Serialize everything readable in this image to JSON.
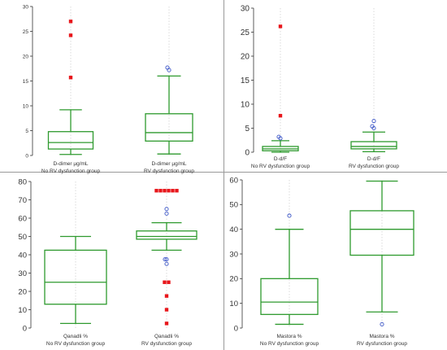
{
  "colors": {
    "box": "#2e9a2e",
    "far_outlier": "#e8161b",
    "near_outlier": "#3b55c7",
    "grid": "#d0d0d0",
    "axis": "#333333",
    "separator": "#9a9a9a"
  },
  "chart_data": [
    {
      "type": "boxplot",
      "ylim": [
        0,
        30
      ],
      "yticks": [
        0,
        5,
        10,
        15,
        20,
        25,
        30
      ],
      "grid": true,
      "groups": [
        {
          "label_line1": "D-dimer µg/mL",
          "label_line2": "No RV dysfunction group",
          "whisker_low": 0.2,
          "q1": 1.3,
          "median": 2.6,
          "q3": 4.8,
          "whisker_high": 9.2,
          "far_outliers": [
            15.7,
            24.2,
            27.0
          ],
          "near_outliers": []
        },
        {
          "label_line1": "D-dimer µg/mL",
          "label_line2": "RV dysfunction group",
          "whisker_low": 0.3,
          "q1": 2.9,
          "median": 4.6,
          "q3": 8.4,
          "whisker_high": 16.0,
          "far_outliers": [],
          "near_outliers": [
            17.2,
            17.7
          ]
        }
      ]
    },
    {
      "type": "boxplot",
      "ylim": [
        0,
        30
      ],
      "yticks": [
        0,
        5,
        10,
        15,
        20,
        25,
        30
      ],
      "grid": true,
      "groups": [
        {
          "label_line1": "D-d/F",
          "label_line2": "No RV dysfunction group",
          "whisker_low": 0.0,
          "q1": 0.3,
          "median": 0.7,
          "q3": 1.2,
          "whisker_high": 2.4,
          "far_outliers": [
            7.6,
            26.2
          ],
          "near_outliers": [
            2.9,
            3.2
          ]
        },
        {
          "label_line1": "D-d/F",
          "label_line2": "RV dysfunction group",
          "whisker_low": 0.1,
          "q1": 0.7,
          "median": 1.2,
          "q3": 2.2,
          "whisker_high": 4.2,
          "far_outliers": [],
          "near_outliers": [
            5.0,
            5.4,
            6.5
          ]
        }
      ]
    },
    {
      "type": "boxplot",
      "ylim": [
        0,
        80
      ],
      "yticks": [
        0,
        10,
        20,
        30,
        40,
        50,
        60,
        70,
        80
      ],
      "grid": true,
      "groups": [
        {
          "label_line1": "Qanadli %",
          "label_line2": "No RV dysfunction group",
          "whisker_low": 2.5,
          "q1": 13.0,
          "median": 25.0,
          "q3": 42.5,
          "whisker_high": 50.0,
          "far_outliers": [],
          "near_outliers": []
        },
        {
          "label_line1": "Qanadli %",
          "label_line2": "RV dysfunction group",
          "whisker_low": 42.5,
          "q1": 48.5,
          "median": 50.0,
          "q3": 53.0,
          "whisker_high": 57.5,
          "far_outliers": [
            75,
            75,
            75,
            75,
            75,
            75,
            25,
            25,
            17.5,
            10,
            2.5
          ],
          "near_outliers": [
            65,
            62.5,
            37.5,
            37.5,
            35
          ]
        }
      ]
    },
    {
      "type": "boxplot",
      "ylim": [
        0,
        60
      ],
      "yticks": [
        0,
        10,
        20,
        30,
        40,
        50,
        60
      ],
      "grid": true,
      "groups": [
        {
          "label_line1": "Mastora %",
          "label_line2": "No RV dysfunction group",
          "whisker_low": 1.5,
          "q1": 5.5,
          "median": 10.5,
          "q3": 20.0,
          "whisker_high": 40.0,
          "far_outliers": [],
          "near_outliers": [
            45.5
          ]
        },
        {
          "label_line1": "Mastora %",
          "label_line2": "RV dysfunction group",
          "whisker_low": 6.5,
          "q1": 29.5,
          "median": 40.0,
          "q3": 47.5,
          "whisker_high": 59.5,
          "far_outliers": [],
          "near_outliers": [
            1.5
          ]
        }
      ]
    }
  ]
}
